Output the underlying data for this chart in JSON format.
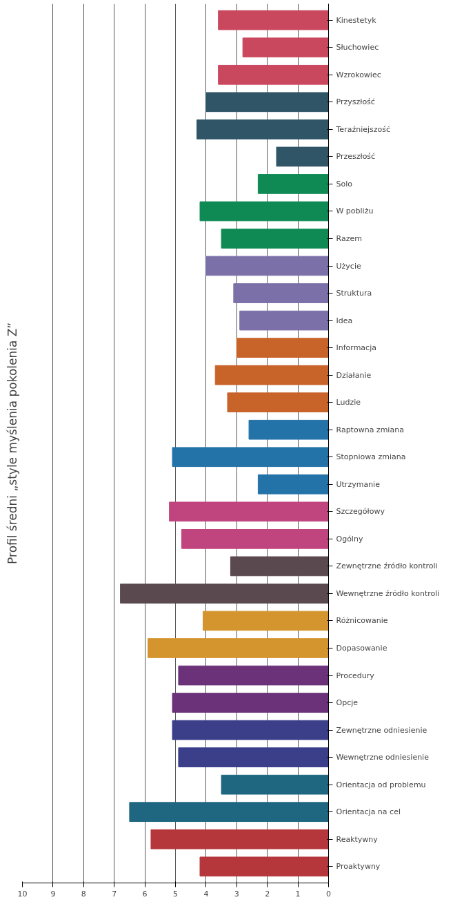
{
  "chart_data": {
    "type": "bar",
    "orientation": "horizontal",
    "title": "Profil średni „style myślenia pokolenia Z”",
    "categories": [
      "Kinestetyk",
      "Słuchowiec",
      "Wzrokowiec",
      "Przyszłość",
      "Teraźniejszość",
      "Przeszłość",
      "Solo",
      "W pobliżu",
      "Razem",
      "Użycie",
      "Struktura",
      "Idea",
      "Informacja",
      "Działanie",
      "Ludzie",
      "Raptowna zmiana",
      "Stopniowa zmiana",
      "Utrzymanie",
      "Szczegółowy",
      "Ogólny",
      "Zewnętrzne źródło kontroli",
      "Wewnętrzne źródło kontroli",
      "Różnicowanie",
      "Dopasowanie",
      "Procedury",
      "Opcje",
      "Zewnętrzne odniesienie",
      "Wewnętrzne odniesienie",
      "Orientacja od problemu",
      "Orientacja na cel",
      "Reaktywny",
      "Proaktywny"
    ],
    "values": [
      3.6,
      2.8,
      3.6,
      4.0,
      4.3,
      1.7,
      2.3,
      4.2,
      3.5,
      4.0,
      3.1,
      2.9,
      3.0,
      3.7,
      3.3,
      2.6,
      5.1,
      2.3,
      5.2,
      4.8,
      3.2,
      6.8,
      4.1,
      5.9,
      4.9,
      5.1,
      5.1,
      4.9,
      3.5,
      6.5,
      5.8,
      4.2
    ],
    "colors": [
      "#c9485e",
      "#c9485e",
      "#c9485e",
      "#2f5566",
      "#2f5566",
      "#2f5566",
      "#0f8a55",
      "#0f8a55",
      "#0f8a55",
      "#7c70a8",
      "#7c70a8",
      "#7c70a8",
      "#c8632a",
      "#c8632a",
      "#c8632a",
      "#2473a8",
      "#2473a8",
      "#2473a8",
      "#c0457e",
      "#c0457e",
      "#5a4a50",
      "#5a4a50",
      "#d4952f",
      "#d4952f",
      "#6b3179",
      "#6b3179",
      "#3b3f8a",
      "#3b3f8a",
      "#1f6781",
      "#1f6781",
      "#b5373c",
      "#b5373c"
    ],
    "xlim": [
      10,
      0
    ],
    "xticks": [
      10,
      9,
      8,
      7,
      6,
      5,
      4,
      3,
      2,
      1,
      0
    ],
    "grid": "x"
  }
}
